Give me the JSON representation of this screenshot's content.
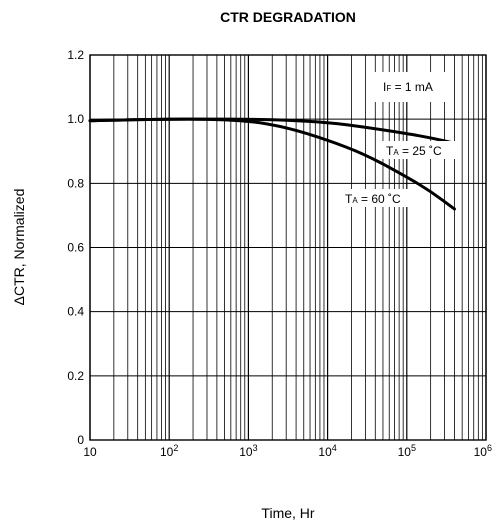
{
  "chart_data": {
    "type": "line",
    "title": "CTR DEGRADATION",
    "xlabel": "Time, Hr",
    "ylabel": "ΔCTR, Normalized",
    "x_scale": "log",
    "xlim": [
      10,
      1000000
    ],
    "ylim": [
      0,
      1.2
    ],
    "grid": true,
    "x_ticks": [
      {
        "value": 10,
        "base": "10",
        "exp": ""
      },
      {
        "value": 100,
        "base": "10",
        "exp": "2"
      },
      {
        "value": 1000,
        "base": "10",
        "exp": "3"
      },
      {
        "value": 10000,
        "base": "10",
        "exp": "4"
      },
      {
        "value": 100000,
        "base": "10",
        "exp": "5"
      },
      {
        "value": 1000000,
        "base": "10",
        "exp": "6"
      }
    ],
    "y_ticks": [
      "0",
      "0.2",
      "0.4",
      "0.6",
      "0.8",
      "1.0",
      "1.2"
    ],
    "condition": {
      "main": "I",
      "sub": "F",
      "rest": " = 1 mA"
    },
    "series": [
      {
        "label_main": "T",
        "label_sub": "A",
        "label_rest": " = 25 ˚C",
        "x": [
          10,
          30,
          100,
          300,
          1000,
          3000,
          10000,
          30000,
          100000,
          200000,
          400000
        ],
        "y": [
          0.995,
          0.998,
          1.0,
          1.0,
          1.0,
          0.997,
          0.99,
          0.975,
          0.955,
          0.942,
          0.925
        ]
      },
      {
        "label_main": "T",
        "label_sub": "A",
        "label_rest": " = 60 ˚C",
        "x": [
          10,
          30,
          100,
          300,
          1000,
          3000,
          10000,
          30000,
          100000,
          200000,
          400000
        ],
        "y": [
          0.995,
          0.998,
          1.0,
          1.0,
          0.995,
          0.975,
          0.935,
          0.89,
          0.82,
          0.775,
          0.72
        ]
      }
    ]
  }
}
